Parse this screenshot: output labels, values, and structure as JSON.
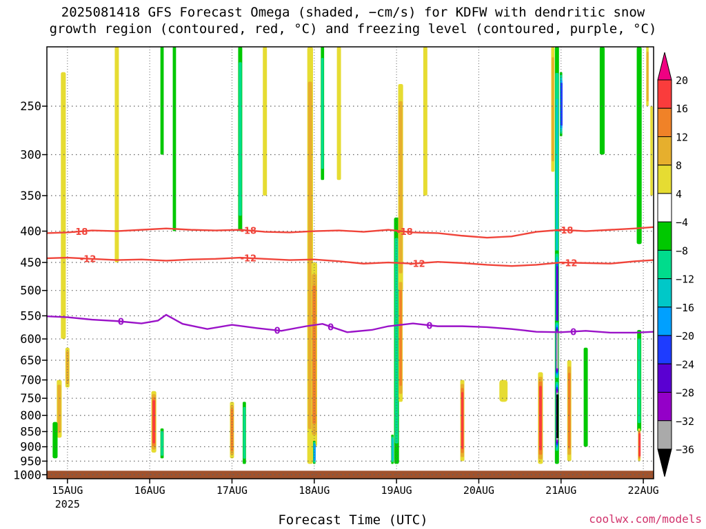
{
  "title": "2025081418 GFS Forecast Omega (shaded, −cm/s) for KDFW with dendritic snow\ngrowth region (contoured, red, °C) and freezing level (contoured, purple, °C)",
  "credit": "coolwx.com/models",
  "colors": {
    "grid": "#606060",
    "ground": "#a0522d",
    "contour_red": "#f0443a",
    "contour_purple": "#9a12c8",
    "colorbar": [
      "#000000",
      "#aaaaaa",
      "#9400c8",
      "#5a00d2",
      "#1e3cff",
      "#00a0ff",
      "#00c8c8",
      "#00dc8c",
      "#00c800",
      "#ffffff",
      "#e6dc32",
      "#e6af2d",
      "#f08228",
      "#fa3c3c",
      "#f00082"
    ]
  },
  "chart_data": {
    "type": "heatmap",
    "title": "2025081418 GFS Forecast Omega (shaded, −cm/s) for KDFW with dendritic snow growth region (contoured, red, °C) and freezing level (contoured, purple, °C)",
    "xlabel": "Forecast Time (UTC)",
    "ylabel": "",
    "x_ticks": [
      "15AUG",
      "16AUG",
      "17AUG",
      "18AUG",
      "19AUG",
      "20AUG",
      "21AUG",
      "22AUG"
    ],
    "x_year_label": "2025",
    "x_range_days": [
      14.75,
      22.125
    ],
    "y_ticks": [
      250,
      300,
      350,
      400,
      450,
      500,
      550,
      600,
      650,
      700,
      750,
      800,
      850,
      900,
      950,
      1000
    ],
    "y_range_hpa": [
      200,
      1015
    ],
    "y_scale": "log",
    "grid": true,
    "colorbar": {
      "labels": [
        "20",
        "16",
        "12",
        "8",
        "4",
        "−4",
        "−8",
        "−12",
        "−16",
        "−20",
        "−24",
        "−28",
        "−32",
        "−36"
      ],
      "levels": [
        20,
        16,
        12,
        8,
        4,
        -4,
        -8,
        -12,
        -16,
        -20,
        -24,
        -28,
        -32,
        -36
      ]
    },
    "ground_level_hpa": 985,
    "contours": [
      {
        "name": "-18",
        "color": "red",
        "label_days": [
          15.15,
          17.2,
          19.1,
          21.05
        ],
        "x_days": [
          14.75,
          15.0,
          15.3,
          15.6,
          15.9,
          16.2,
          16.5,
          16.8,
          17.1,
          17.4,
          17.7,
          18.0,
          18.3,
          18.6,
          18.9,
          19.2,
          19.5,
          19.8,
          20.1,
          20.4,
          20.7,
          21.0,
          21.3,
          21.6,
          21.9,
          22.125
        ],
        "p": [
          403,
          402,
          399,
          400,
          398,
          396,
          398,
          399,
          398,
          401,
          402,
          400,
          399,
          401,
          398,
          402,
          403,
          407,
          410,
          408,
          401,
          398,
          400,
          398,
          396,
          394
        ]
      },
      {
        "name": "-12",
        "color": "red",
        "label_days": [
          15.25,
          17.2,
          19.25,
          21.1
        ],
        "x_days": [
          14.75,
          15.0,
          15.3,
          15.6,
          15.9,
          16.2,
          16.5,
          16.8,
          17.1,
          17.4,
          17.7,
          18.0,
          18.3,
          18.6,
          18.9,
          19.2,
          19.5,
          19.8,
          20.1,
          20.4,
          20.7,
          21.0,
          21.3,
          21.6,
          21.9,
          22.125
        ],
        "p": [
          443,
          442,
          444,
          446,
          445,
          447,
          445,
          444,
          442,
          444,
          446,
          445,
          448,
          452,
          450,
          452,
          449,
          451,
          454,
          456,
          454,
          450,
          451,
          452,
          448,
          446
        ]
      },
      {
        "name": "0",
        "color": "purple",
        "label_days": [
          15.65,
          17.55,
          18.2,
          19.4,
          21.15
        ],
        "x_days": [
          14.75,
          15.0,
          15.3,
          15.6,
          15.9,
          16.1,
          16.2,
          16.4,
          16.7,
          17.0,
          17.3,
          17.6,
          17.9,
          18.1,
          18.4,
          18.7,
          18.9,
          19.2,
          19.5,
          19.8,
          20.1,
          20.4,
          20.7,
          21.0,
          21.3,
          21.6,
          21.9,
          22.125
        ],
        "p": [
          551,
          553,
          558,
          561,
          566,
          560,
          548,
          567,
          578,
          569,
          576,
          582,
          572,
          567,
          585,
          580,
          572,
          566,
          572,
          572,
          574,
          578,
          584,
          585,
          582,
          586,
          586,
          584
        ]
      }
    ],
    "contour_labels": [
      "-18",
      "-18",
      "-18",
      "-18",
      "-12",
      "-12",
      "-12",
      "-12",
      "0",
      "0",
      "0",
      "0",
      "0"
    ],
    "shading_blobs_note": "omega values at selected times/levels (−cm/s)",
    "shading_blobs": [
      {
        "t": 14.95,
        "p1": 220,
        "p2": 600,
        "w": 0.06,
        "v": 6
      },
      {
        "t": 14.9,
        "p1": 700,
        "p2": 870,
        "w": 0.06,
        "v": 10
      },
      {
        "t": 14.85,
        "p1": 820,
        "p2": 940,
        "w": 0.06,
        "v": -8
      },
      {
        "t": 15.0,
        "p1": 620,
        "p2": 720,
        "w": 0.05,
        "v": 10
      },
      {
        "t": 16.05,
        "p1": 730,
        "p2": 920,
        "w": 0.06,
        "v": 18
      },
      {
        "t": 16.15,
        "p1": 840,
        "p2": 940,
        "w": 0.04,
        "v": -12
      },
      {
        "t": 16.15,
        "p1": 200,
        "p2": 300,
        "w": 0.04,
        "v": -8
      },
      {
        "t": 17.0,
        "p1": 760,
        "p2": 940,
        "w": 0.05,
        "v": 16
      },
      {
        "t": 17.1,
        "p1": 200,
        "p2": 400,
        "w": 0.05,
        "v": -10
      },
      {
        "t": 17.15,
        "p1": 760,
        "p2": 960,
        "w": 0.04,
        "v": -10
      },
      {
        "t": 17.95,
        "p1": 200,
        "p2": 960,
        "w": 0.07,
        "v": 10
      },
      {
        "t": 18.0,
        "p1": 450,
        "p2": 900,
        "w": 0.07,
        "v": 14
      },
      {
        "t": 18.1,
        "p1": 200,
        "p2": 330,
        "w": 0.04,
        "v": -12
      },
      {
        "t": 18.0,
        "p1": 880,
        "p2": 960,
        "w": 0.03,
        "v": -20
      },
      {
        "t": 19.0,
        "p1": 380,
        "p2": 960,
        "w": 0.06,
        "v": -10
      },
      {
        "t": 19.05,
        "p1": 230,
        "p2": 500,
        "w": 0.06,
        "v": 10
      },
      {
        "t": 19.05,
        "p1": 470,
        "p2": 760,
        "w": 0.05,
        "v": 14
      },
      {
        "t": 18.95,
        "p1": 860,
        "p2": 960,
        "w": 0.03,
        "v": -16
      },
      {
        "t": 19.8,
        "p1": 700,
        "p2": 950,
        "w": 0.05,
        "v": 20
      },
      {
        "t": 20.75,
        "p1": 680,
        "p2": 960,
        "w": 0.06,
        "v": 20
      },
      {
        "t": 20.95,
        "p1": 200,
        "p2": 960,
        "w": 0.05,
        "v": -16
      },
      {
        "t": 20.95,
        "p1": 430,
        "p2": 600,
        "w": 0.04,
        "v": -28
      },
      {
        "t": 20.95,
        "p1": 560,
        "p2": 700,
        "w": 0.04,
        "v": -34
      },
      {
        "t": 20.95,
        "p1": 700,
        "p2": 920,
        "w": 0.035,
        "v": -40
      },
      {
        "t": 21.1,
        "p1": 650,
        "p2": 950,
        "w": 0.05,
        "v": 16
      },
      {
        "t": 20.9,
        "p1": 200,
        "p2": 320,
        "w": 0.04,
        "v": 12
      },
      {
        "t": 21.0,
        "p1": 220,
        "p2": 280,
        "w": 0.03,
        "v": -22
      },
      {
        "t": 21.95,
        "p1": 200,
        "p2": 420,
        "w": 0.06,
        "v": -8
      },
      {
        "t": 21.95,
        "p1": 580,
        "p2": 850,
        "w": 0.05,
        "v": -10
      },
      {
        "t": 21.95,
        "p1": 840,
        "p2": 950,
        "w": 0.03,
        "v": 20
      },
      {
        "t": 22.05,
        "p1": 200,
        "p2": 250,
        "w": 0.03,
        "v": 10
      },
      {
        "t": 15.6,
        "p1": 200,
        "p2": 450,
        "w": 0.05,
        "v": 6
      },
      {
        "t": 16.3,
        "p1": 200,
        "p2": 400,
        "w": 0.04,
        "v": -8
      },
      {
        "t": 17.4,
        "p1": 200,
        "p2": 350,
        "w": 0.05,
        "v": 6
      },
      {
        "t": 18.3,
        "p1": 200,
        "p2": 330,
        "w": 0.05,
        "v": 6
      },
      {
        "t": 19.35,
        "p1": 200,
        "p2": 350,
        "w": 0.05,
        "v": 6
      },
      {
        "t": 20.3,
        "p1": 700,
        "p2": 760,
        "w": 0.1,
        "v": 6
      },
      {
        "t": 21.3,
        "p1": 620,
        "p2": 900,
        "w": 0.05,
        "v": -8
      },
      {
        "t": 21.5,
        "p1": 200,
        "p2": 300,
        "w": 0.06,
        "v": -8
      },
      {
        "t": 22.1,
        "p1": 250,
        "p2": 350,
        "w": 0.03,
        "v": 6
      }
    ]
  }
}
